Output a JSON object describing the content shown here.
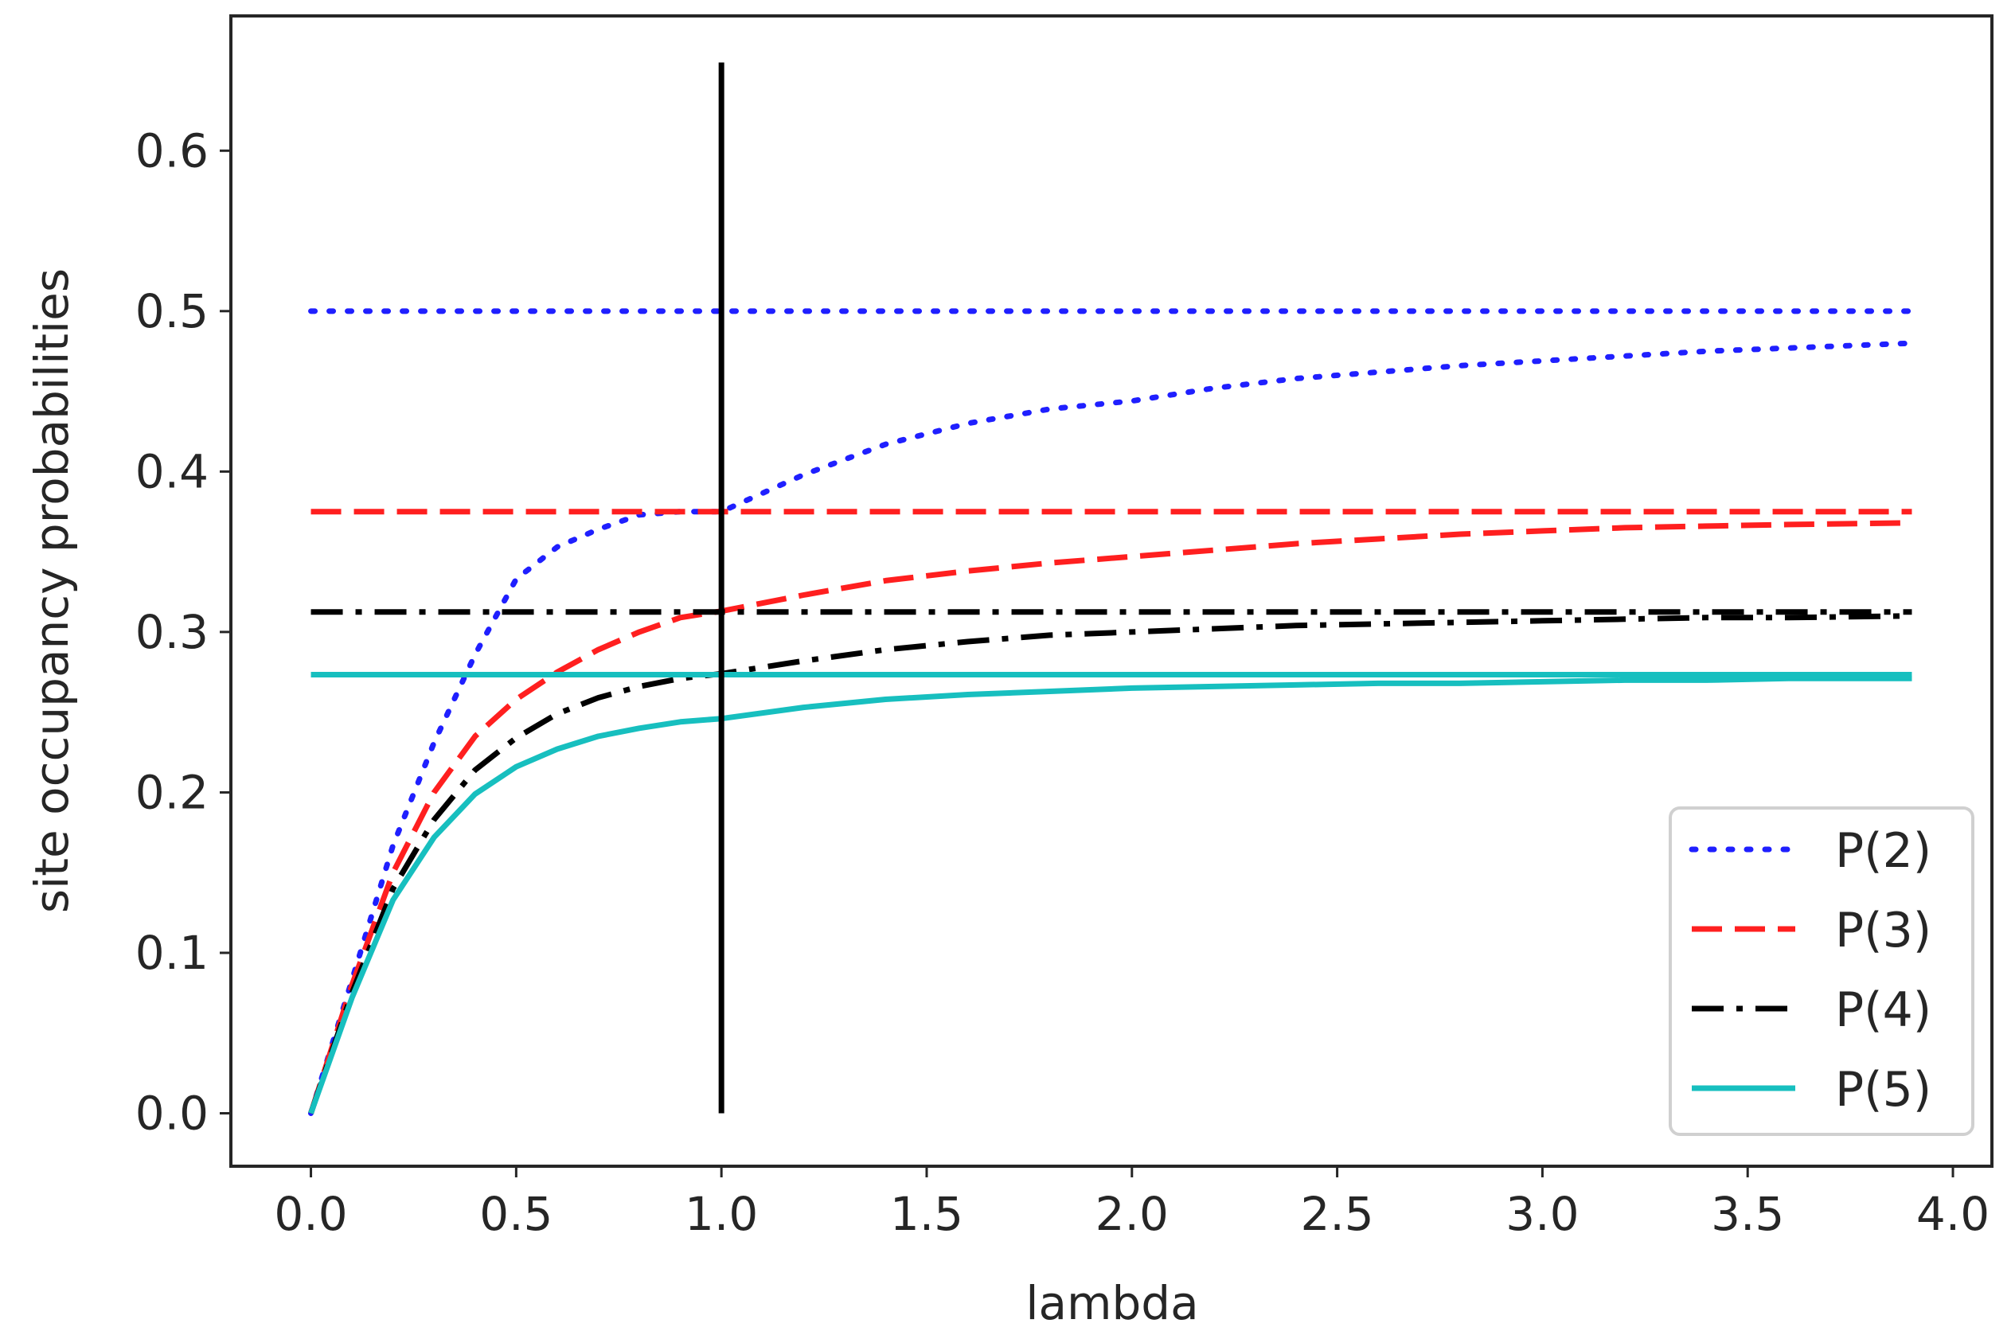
{
  "chart_data": {
    "type": "line",
    "title": "",
    "xlabel": "lambda",
    "ylabel": "site occupancy probabilities",
    "xlim": [
      -0.195,
      4.095
    ],
    "ylim": [
      -0.033,
      0.684
    ],
    "xticks": [
      0.0,
      0.5,
      1.0,
      1.5,
      2.0,
      2.5,
      3.0,
      3.5,
      4.0
    ],
    "xtick_labels": [
      "0.0",
      "0.5",
      "1.0",
      "1.5",
      "2.0",
      "2.5",
      "3.0",
      "3.5",
      "4.0"
    ],
    "yticks": [
      0.0,
      0.1,
      0.2,
      0.3,
      0.4,
      0.5,
      0.6
    ],
    "ytick_labels": [
      "0.0",
      "0.1",
      "0.2",
      "0.3",
      "0.4",
      "0.5",
      "0.6"
    ],
    "grid": false,
    "legend_position": "lower-right",
    "x": [
      0.0,
      0.1,
      0.2,
      0.3,
      0.4,
      0.5,
      0.6,
      0.7,
      0.8,
      0.9,
      1.0,
      1.2,
      1.4,
      1.6,
      1.8,
      2.0,
      2.2,
      2.4,
      2.6,
      2.8,
      3.0,
      3.2,
      3.4,
      3.6,
      3.9
    ],
    "series": [
      {
        "name": "P(2)",
        "color": "#1f1fff",
        "dash": "dotted",
        "values": [
          0.0,
          0.083,
          0.167,
          0.231,
          0.286,
          0.333,
          0.353,
          0.364,
          0.373,
          0.375,
          0.375,
          0.398,
          0.417,
          0.43,
          0.439,
          0.444,
          0.452,
          0.458,
          0.462,
          0.466,
          0.469,
          0.472,
          0.475,
          0.477,
          0.48
        ],
        "reference_level": 0.5
      },
      {
        "name": "P(3)",
        "color": "#ff1f1f",
        "dash": "dashed",
        "values": [
          0.0,
          0.08,
          0.15,
          0.2,
          0.235,
          0.258,
          0.275,
          0.289,
          0.3,
          0.309,
          0.313,
          0.323,
          0.332,
          0.338,
          0.343,
          0.347,
          0.351,
          0.355,
          0.358,
          0.361,
          0.363,
          0.365,
          0.366,
          0.367,
          0.368
        ],
        "reference_level": 0.375
      },
      {
        "name": "P(4)",
        "color": "#000000",
        "dash": "dashdot",
        "values": [
          0.0,
          0.075,
          0.14,
          0.183,
          0.214,
          0.234,
          0.249,
          0.259,
          0.266,
          0.271,
          0.274,
          0.282,
          0.289,
          0.294,
          0.298,
          0.3,
          0.302,
          0.304,
          0.305,
          0.306,
          0.307,
          0.308,
          0.309,
          0.309,
          0.31
        ],
        "reference_level": 0.3125
      },
      {
        "name": "P(5)",
        "color": "#17bfbf",
        "dash": "solid",
        "values": [
          0.0,
          0.072,
          0.133,
          0.172,
          0.199,
          0.216,
          0.227,
          0.235,
          0.24,
          0.244,
          0.246,
          0.253,
          0.258,
          0.261,
          0.263,
          0.265,
          0.266,
          0.267,
          0.268,
          0.268,
          0.269,
          0.27,
          0.27,
          0.271,
          0.271
        ],
        "reference_level": 0.2734
      }
    ],
    "reference_line_x_range": [
      0.0,
      3.9
    ],
    "vertical_line": {
      "x": 1.0,
      "y_range": [
        0.0,
        0.655
      ],
      "color": "#000000"
    }
  }
}
